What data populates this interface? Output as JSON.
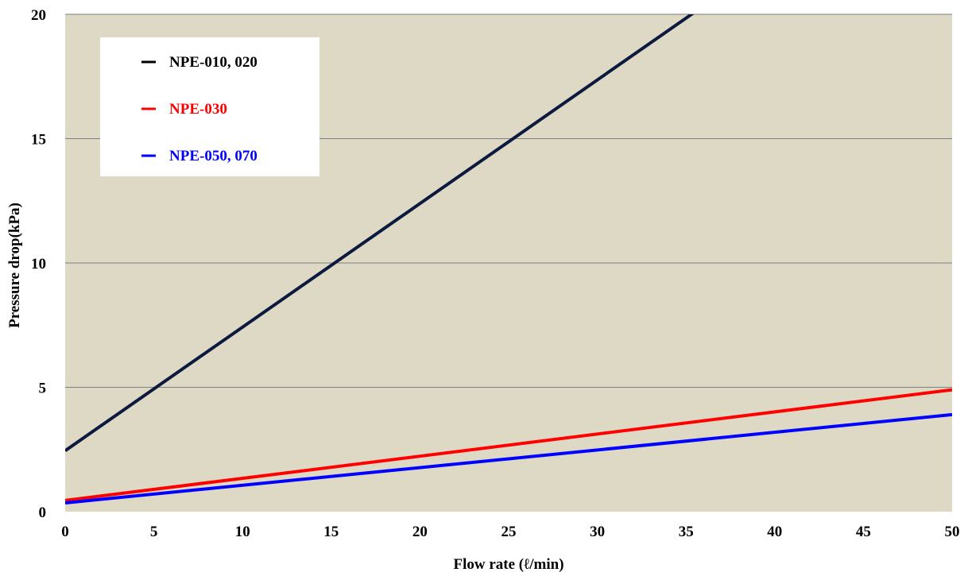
{
  "colors": {
    "plot_background": "#ddd9c4",
    "gridline": "#7f7f7f",
    "legend_background": "#ffffff"
  },
  "chart_data": {
    "type": "line",
    "title": "",
    "xlabel": "Flow rate (ℓ/min)",
    "ylabel": "Pressure drop(kPa)",
    "xlim": [
      0,
      50
    ],
    "ylim": [
      0,
      20
    ],
    "x_ticks": [
      "0",
      "5",
      "10",
      "15",
      "20",
      "25",
      "30",
      "35",
      "40",
      "45",
      "50"
    ],
    "y_ticks": [
      "0",
      "5",
      "10",
      "15",
      "20"
    ],
    "grid": "horizontal",
    "legend_position": "top-left",
    "series": [
      {
        "name": "NPE-010, 020",
        "color": "#0c1a3f",
        "legend_color": "#000000",
        "x": [
          0,
          50
        ],
        "y": [
          2.45,
          27.3
        ]
      },
      {
        "name": "NPE-030",
        "color": "#ff0000",
        "legend_color": "#ff0000",
        "x": [
          0,
          50
        ],
        "y": [
          0.45,
          4.9
        ]
      },
      {
        "name": "NPE-050, 070",
        "color": "#0000ff",
        "legend_color": "#0000ff",
        "x": [
          0,
          50
        ],
        "y": [
          0.35,
          3.9
        ]
      }
    ]
  }
}
